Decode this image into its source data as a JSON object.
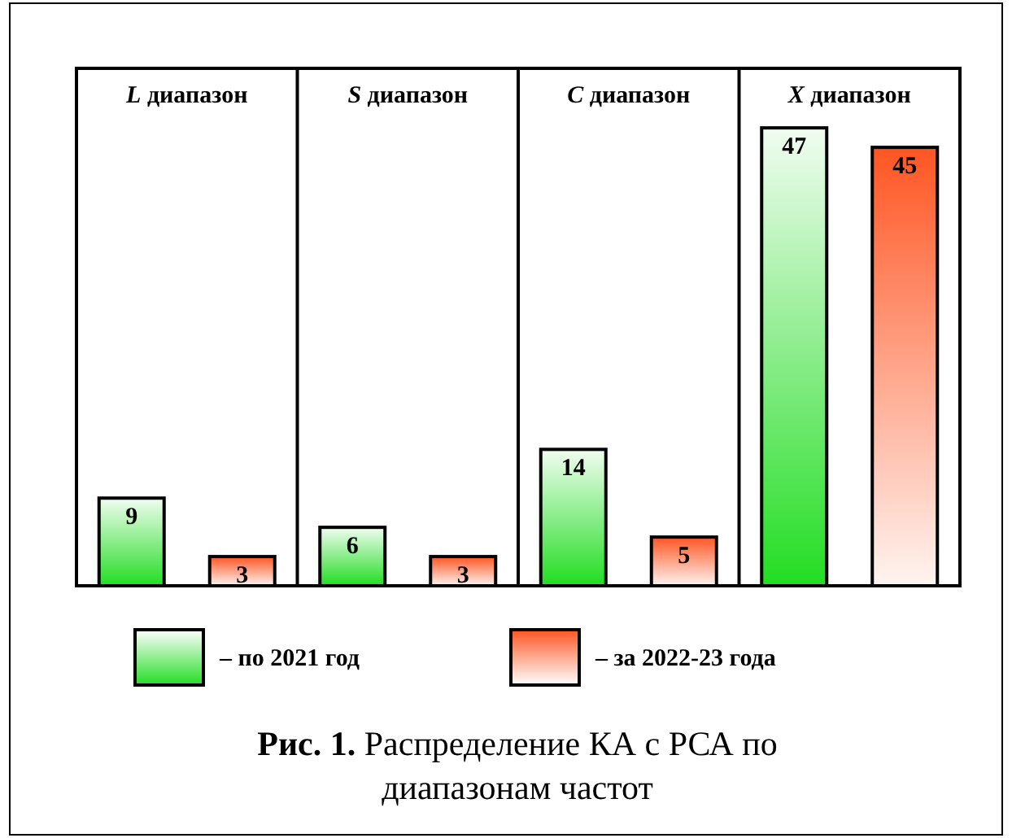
{
  "chart_data": {
    "type": "bar",
    "title": "Рис. 1. Распределение КА с РСА по диапазонам частот",
    "categories": [
      "L диапазон",
      "S диапазон",
      "C диапазон",
      "X диапазон"
    ],
    "series": [
      {
        "name": "– по 2021 год",
        "color": "#22dd22",
        "values": [
          9,
          6,
          14,
          47
        ]
      },
      {
        "name": "– за 2022-23 года",
        "color": "#ff5522",
        "values": [
          3,
          3,
          5,
          45
        ]
      }
    ],
    "data_labels": true,
    "legend": "bottom"
  }
}
